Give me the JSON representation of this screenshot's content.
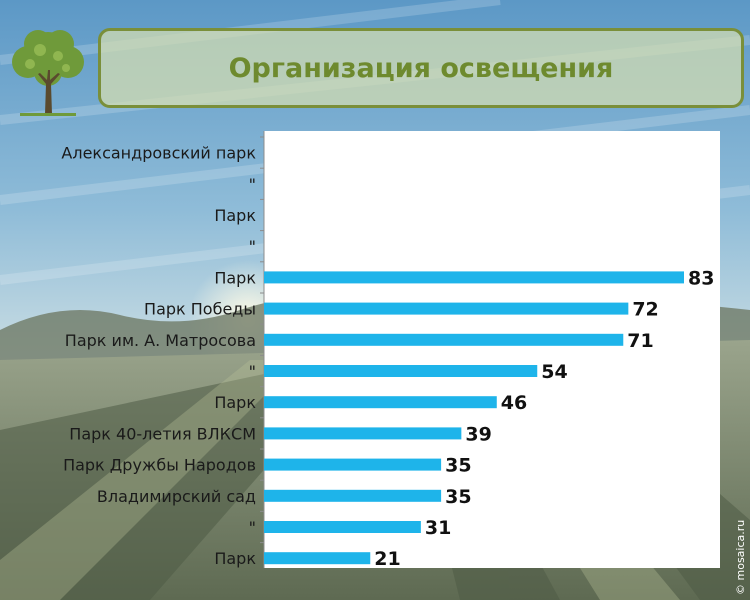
{
  "slide": {
    "title": "Организация освещения",
    "watermark": "© mosaica.ru",
    "colors": {
      "title": "#6e8a2e",
      "bar": "#1eb4ea",
      "frame": "#7a8f3a"
    },
    "icons": [
      "tree-icon"
    ]
  },
  "chart_data": {
    "type": "bar",
    "orientation": "horizontal",
    "categories": [
      "Александровский парк",
      "\"",
      "Парк",
      "\"",
      "Парк",
      "Парк Победы",
      "Парк им. А. Матросова",
      "\"",
      "Парк",
      "Парк 40-летия ВЛКСМ",
      "Парк Дружбы Народов",
      "Владимирский сад",
      "\"",
      "Парк"
    ],
    "values": [
      null,
      null,
      null,
      null,
      83,
      72,
      71,
      54,
      46,
      39,
      35,
      35,
      31,
      21
    ],
    "value_labels": [
      "",
      "",
      "",
      "",
      "83",
      "72",
      "71",
      "54",
      "46",
      "39",
      "35",
      "35",
      "31",
      "21"
    ],
    "xlim": [
      0,
      90
    ],
    "grid": false,
    "legend": "none",
    "bar_color": "#1eb4ea"
  }
}
